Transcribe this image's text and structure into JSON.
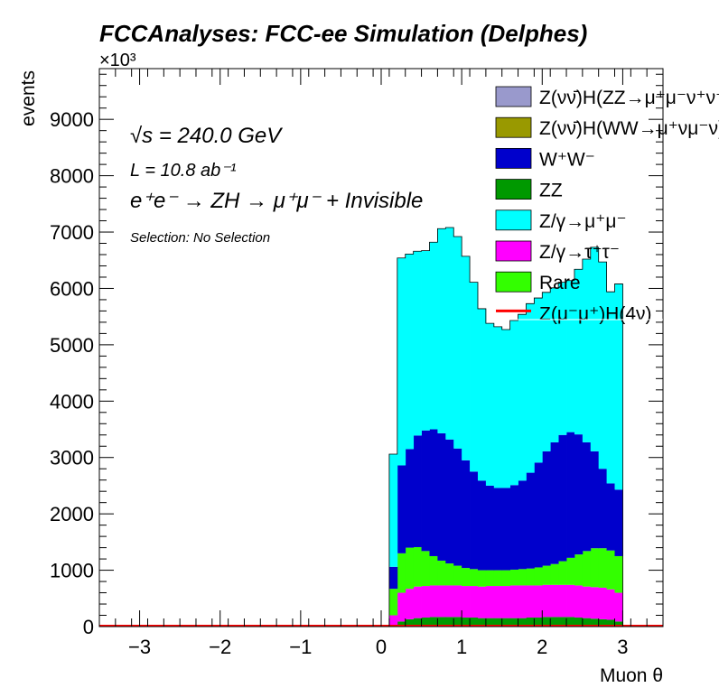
{
  "chart_data": {
    "type": "bar",
    "stacked": true,
    "histogram": true,
    "title": "FCCAnalyses: FCC-ee Simulation (Delphes)",
    "xlabel": "Muon θ",
    "ylabel": "events",
    "y_multiplier": "×10³",
    "xlim": [
      -3.5,
      3.5
    ],
    "ylim": [
      0,
      9900
    ],
    "x_ticks": [
      "−3",
      "−2",
      "−1",
      "0",
      "1",
      "2",
      "3"
    ],
    "y_ticks": [
      "0",
      "1000",
      "2000",
      "3000",
      "4000",
      "5000",
      "6000",
      "7000",
      "8000",
      "9000"
    ],
    "bin_start": 0.1,
    "bin_width": 0.1,
    "annotations": {
      "energy": "√s = 240.0 GeV",
      "lumi": "L = 10.8 ab⁻¹",
      "process": "e⁺e⁻ → ZH → μ⁺μ⁻ + Invisible",
      "selection": "Selection: No Selection"
    },
    "legend": [
      {
        "name": "Z(νν̄)H(ZZ→μ⁺μ⁻ν⁺ν⁻)",
        "color": "#9999cc"
      },
      {
        "name": "Z(νν̄)H(WW→μ⁺νμ⁻ν)",
        "color": "#999900"
      },
      {
        "name": "W⁺W⁻",
        "color": "#0000cc"
      },
      {
        "name": "ZZ",
        "color": "#009900"
      },
      {
        "name": "Z/γ→μ⁺μ⁻",
        "color": "#00ffff"
      },
      {
        "name": "Z/γ→τ⁺τ⁻",
        "color": "#ff00ff"
      },
      {
        "name": "Rare",
        "color": "#33ff00"
      },
      {
        "name": "Z(μ⁻μ⁺)H(4ν)",
        "color": "#ff0000"
      }
    ],
    "series": [
      {
        "name": "ZZ",
        "color": "#009900",
        "values": [
          30,
          90,
          130,
          150,
          160,
          170,
          170,
          170,
          170,
          160,
          160,
          150,
          150,
          150,
          150,
          150,
          150,
          160,
          160,
          170,
          170,
          170,
          170,
          160,
          150,
          140,
          130,
          120,
          90
        ]
      },
      {
        "name": "Z/γ→τ⁺τ⁻",
        "color": "#ff00ff",
        "values": [
          170,
          510,
          540,
          560,
          560,
          560,
          560,
          560,
          560,
          560,
          560,
          560,
          570,
          570,
          570,
          580,
          580,
          570,
          570,
          570,
          570,
          570,
          570,
          570,
          560,
          560,
          560,
          540,
          510
        ]
      },
      {
        "name": "Rare",
        "color": "#33ff00",
        "values": [
          470,
          700,
          730,
          700,
          620,
          520,
          440,
          390,
          350,
          320,
          300,
          290,
          280,
          280,
          280,
          280,
          290,
          300,
          320,
          340,
          370,
          420,
          480,
          550,
          630,
          690,
          700,
          690,
          650
        ]
      },
      {
        "name": "W⁺W⁻",
        "color": "#0000cc",
        "values": [
          390,
          1560,
          1750,
          1980,
          2140,
          2250,
          2260,
          2200,
          2080,
          1910,
          1730,
          1590,
          1500,
          1460,
          1460,
          1500,
          1570,
          1700,
          1860,
          2030,
          2160,
          2240,
          2230,
          2130,
          1930,
          1720,
          1410,
          1190,
          1180
        ]
      },
      {
        "name": "Z/γ→μ⁺μ⁻",
        "color": "#00ffff",
        "values": [
          2000,
          3680,
          3460,
          3270,
          3190,
          3320,
          3630,
          3760,
          3760,
          3620,
          3360,
          3050,
          2880,
          2860,
          2810,
          2920,
          2950,
          3000,
          2920,
          2820,
          2740,
          2710,
          2690,
          2930,
          3250,
          3620,
          3670,
          3400,
          3650
        ]
      },
      {
        "name": "Z(νν̄)H(WW→μ⁺νμ⁻ν)",
        "color": "#999900",
        "values": [
          0,
          0,
          0,
          0,
          0,
          0,
          0,
          0,
          0,
          0,
          0,
          0,
          0,
          0,
          0,
          0,
          0,
          0,
          0,
          0,
          0,
          0,
          0,
          0,
          0,
          0,
          0,
          0,
          0
        ]
      },
      {
        "name": "Z(νν̄)H(ZZ→μ⁺μ⁻ν⁺ν⁻)",
        "color": "#9999cc",
        "values": [
          0,
          0,
          0,
          0,
          0,
          0,
          0,
          0,
          0,
          0,
          0,
          0,
          0,
          0,
          0,
          0,
          0,
          0,
          0,
          0,
          0,
          0,
          0,
          0,
          0,
          0,
          0,
          0,
          0
        ]
      }
    ]
  }
}
